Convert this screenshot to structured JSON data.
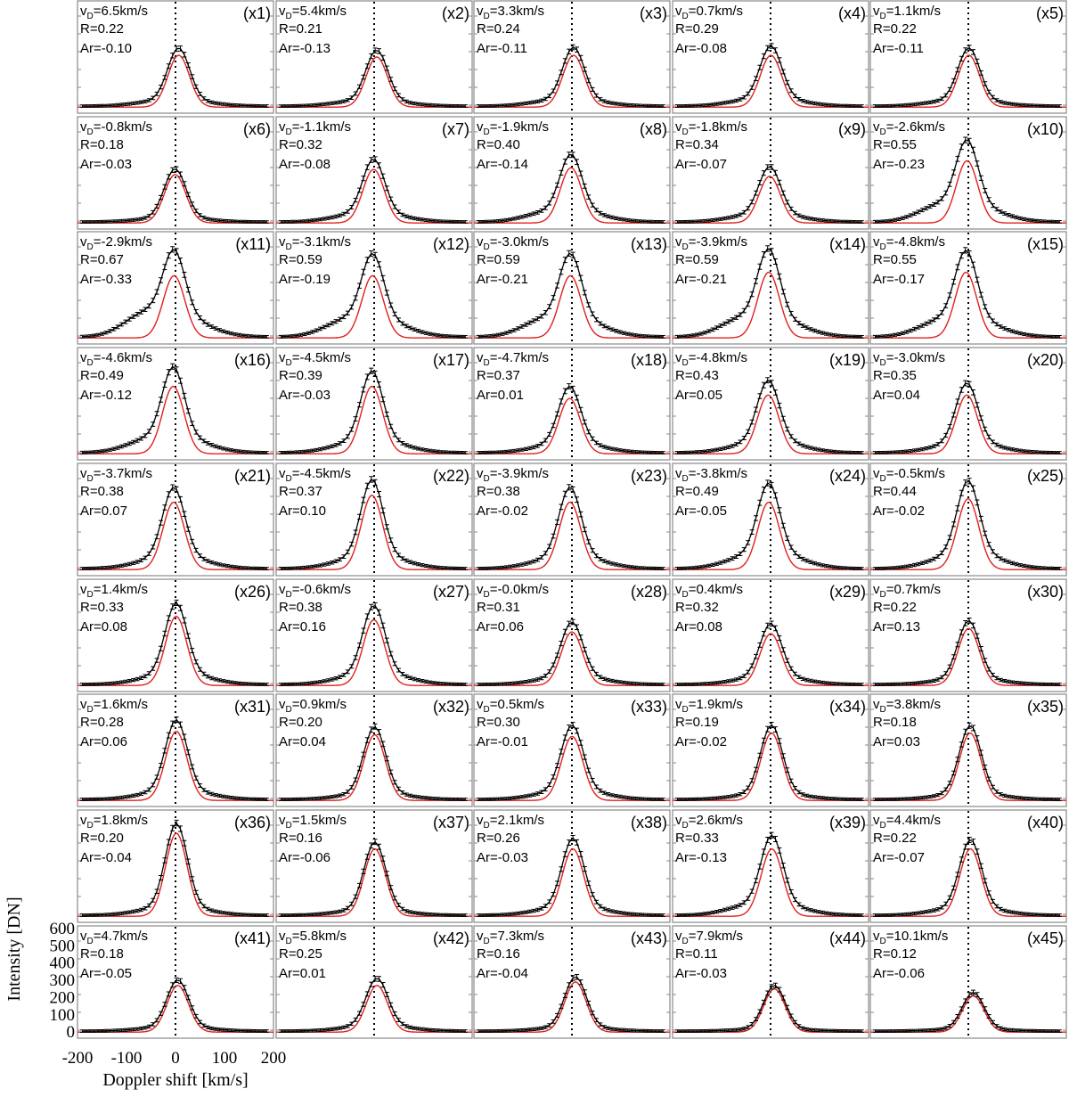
{
  "figure": {
    "x_axis_label": "Doppler shift [km/s]",
    "y_axis_label": "Intensity [DN]",
    "x_ticks": [
      -200,
      -100,
      0,
      100,
      200
    ],
    "y_ticks": [
      0,
      100,
      200,
      300,
      400,
      500,
      600
    ],
    "colors": {
      "observed": "#000000",
      "fit": "#e0201b",
      "frame": "#888888"
    }
  },
  "chart_data": {
    "type": "line",
    "xlabel": "Doppler shift [km/s]",
    "ylabel": "Intensity [DN]",
    "xlim": [
      -200,
      200
    ],
    "ylim": [
      -40,
      620
    ],
    "grid": false,
    "layout": "9 rows x 5 columns of small panels",
    "series_kinds": [
      "observed profile with error bars (black)",
      "single Gaussian fit (red)",
      "rest velocity 0 km/s (dotted vertical line)"
    ],
    "panels": [
      {
        "label": "(x1)",
        "vd": "6.5",
        "R": "0.22",
        "Ar": "-0.10",
        "peak": 300,
        "center": 6.5
      },
      {
        "label": "(x2)",
        "vd": "5.4",
        "R": "0.21",
        "Ar": "-0.13",
        "peak": 290,
        "center": 5.4
      },
      {
        "label": "(x3)",
        "vd": "3.3",
        "R": "0.24",
        "Ar": "-0.11",
        "peak": 300,
        "center": 3.3
      },
      {
        "label": "(x4)",
        "vd": "0.7",
        "R": "0.29",
        "Ar": "-0.08",
        "peak": 300,
        "center": 0.7
      },
      {
        "label": "(x5)",
        "vd": "1.1",
        "R": "0.22",
        "Ar": "-0.11",
        "peak": 300,
        "center": 1.1
      },
      {
        "label": "(x6)",
        "vd": "-0.8",
        "R": "0.18",
        "Ar": "-0.03",
        "peak": 280,
        "center": -0.8
      },
      {
        "label": "(x7)",
        "vd": "-1.1",
        "R": "0.32",
        "Ar": "-0.08",
        "peak": 310,
        "center": -1.1
      },
      {
        "label": "(x8)",
        "vd": "-1.9",
        "R": "0.40",
        "Ar": "-0.14",
        "peak": 320,
        "center": -1.9
      },
      {
        "label": "(x9)",
        "vd": "-1.8",
        "R": "0.34",
        "Ar": "-0.07",
        "peak": 270,
        "center": -1.8
      },
      {
        "label": "(x10)",
        "vd": "-2.6",
        "R": "0.55",
        "Ar": "-0.23",
        "peak": 360,
        "center": -2.6
      },
      {
        "label": "(x11)",
        "vd": "-2.9",
        "R": "0.67",
        "Ar": "-0.33",
        "peak": 360,
        "center": -2.9
      },
      {
        "label": "(x12)",
        "vd": "-3.1",
        "R": "0.59",
        "Ar": "-0.19",
        "peak": 360,
        "center": -3.1
      },
      {
        "label": "(x13)",
        "vd": "-3.0",
        "R": "0.59",
        "Ar": "-0.21",
        "peak": 360,
        "center": -3.0
      },
      {
        "label": "(x14)",
        "vd": "-3.9",
        "R": "0.59",
        "Ar": "-0.21",
        "peak": 380,
        "center": -3.9
      },
      {
        "label": "(x15)",
        "vd": "-4.8",
        "R": "0.55",
        "Ar": "-0.17",
        "peak": 380,
        "center": -4.8
      },
      {
        "label": "(x16)",
        "vd": "-4.6",
        "R": "0.49",
        "Ar": "-0.12",
        "peak": 390,
        "center": -4.6
      },
      {
        "label": "(x17)",
        "vd": "-4.5",
        "R": "0.39",
        "Ar": "-0.03",
        "peak": 390,
        "center": -4.5
      },
      {
        "label": "(x18)",
        "vd": "-4.7",
        "R": "0.37",
        "Ar": "0.01",
        "peak": 320,
        "center": -4.7
      },
      {
        "label": "(x19)",
        "vd": "-4.8",
        "R": "0.43",
        "Ar": "0.05",
        "peak": 340,
        "center": -4.8
      },
      {
        "label": "(x20)",
        "vd": "-3.0",
        "R": "0.35",
        "Ar": "0.04",
        "peak": 340,
        "center": -3.0
      },
      {
        "label": "(x21)",
        "vd": "-3.7",
        "R": "0.38",
        "Ar": "0.07",
        "peak": 390,
        "center": -3.7
      },
      {
        "label": "(x22)",
        "vd": "-4.5",
        "R": "0.37",
        "Ar": "0.10",
        "peak": 430,
        "center": -4.5
      },
      {
        "label": "(x23)",
        "vd": "-3.9",
        "R": "0.38",
        "Ar": "-0.02",
        "peak": 390,
        "center": -3.9
      },
      {
        "label": "(x24)",
        "vd": "-3.8",
        "R": "0.49",
        "Ar": "-0.05",
        "peak": 390,
        "center": -3.8
      },
      {
        "label": "(x25)",
        "vd": "-0.5",
        "R": "0.44",
        "Ar": "-0.02",
        "peak": 410,
        "center": -0.5
      },
      {
        "label": "(x26)",
        "vd": "1.4",
        "R": "0.33",
        "Ar": "0.08",
        "peak": 400,
        "center": 1.4
      },
      {
        "label": "(x27)",
        "vd": "-0.6",
        "R": "0.38",
        "Ar": "0.16",
        "peak": 380,
        "center": -0.6
      },
      {
        "label": "(x28)",
        "vd": "-0.0",
        "R": "0.31",
        "Ar": "0.06",
        "peak": 310,
        "center": 0.0
      },
      {
        "label": "(x29)",
        "vd": "0.4",
        "R": "0.32",
        "Ar": "0.08",
        "peak": 300,
        "center": 0.4
      },
      {
        "label": "(x30)",
        "vd": "0.7",
        "R": "0.22",
        "Ar": "0.13",
        "peak": 330,
        "center": 0.7
      },
      {
        "label": "(x31)",
        "vd": "1.6",
        "R": "0.28",
        "Ar": "0.06",
        "peak": 400,
        "center": 1.6
      },
      {
        "label": "(x32)",
        "vd": "0.9",
        "R": "0.20",
        "Ar": "0.04",
        "peak": 380,
        "center": 0.9
      },
      {
        "label": "(x33)",
        "vd": "0.5",
        "R": "0.30",
        "Ar": "-0.01",
        "peak": 370,
        "center": 0.5
      },
      {
        "label": "(x34)",
        "vd": "1.9",
        "R": "0.19",
        "Ar": "-0.02",
        "peak": 390,
        "center": 1.9
      },
      {
        "label": "(x35)",
        "vd": "3.8",
        "R": "0.18",
        "Ar": "0.03",
        "peak": 390,
        "center": 3.8
      },
      {
        "label": "(x36)",
        "vd": "1.8",
        "R": "0.20",
        "Ar": "-0.04",
        "peak": 480,
        "center": 1.8
      },
      {
        "label": "(x37)",
        "vd": "1.5",
        "R": "0.16",
        "Ar": "-0.06",
        "peak": 390,
        "center": 1.5
      },
      {
        "label": "(x38)",
        "vd": "2.1",
        "R": "0.26",
        "Ar": "-0.03",
        "peak": 390,
        "center": 2.1
      },
      {
        "label": "(x39)",
        "vd": "2.6",
        "R": "0.33",
        "Ar": "-0.13",
        "peak": 390,
        "center": 2.6
      },
      {
        "label": "(x40)",
        "vd": "4.4",
        "R": "0.22",
        "Ar": "-0.07",
        "peak": 390,
        "center": 4.4
      },
      {
        "label": "(x41)",
        "vd": "4.7",
        "R": "0.18",
        "Ar": "-0.05",
        "peak": 270,
        "center": 4.7
      },
      {
        "label": "(x42)",
        "vd": "5.8",
        "R": "0.25",
        "Ar": "0.01",
        "peak": 270,
        "center": 5.8
      },
      {
        "label": "(x43)",
        "vd": "7.3",
        "R": "0.16",
        "Ar": "-0.04",
        "peak": 290,
        "center": 7.3
      },
      {
        "label": "(x44)",
        "vd": "7.9",
        "R": "0.11",
        "Ar": "-0.03",
        "peak": 250,
        "center": 7.9
      },
      {
        "label": "(x45)",
        "vd": "10.1",
        "R": "0.12",
        "Ar": "-0.06",
        "peak": 210,
        "center": 10.1
      }
    ]
  }
}
